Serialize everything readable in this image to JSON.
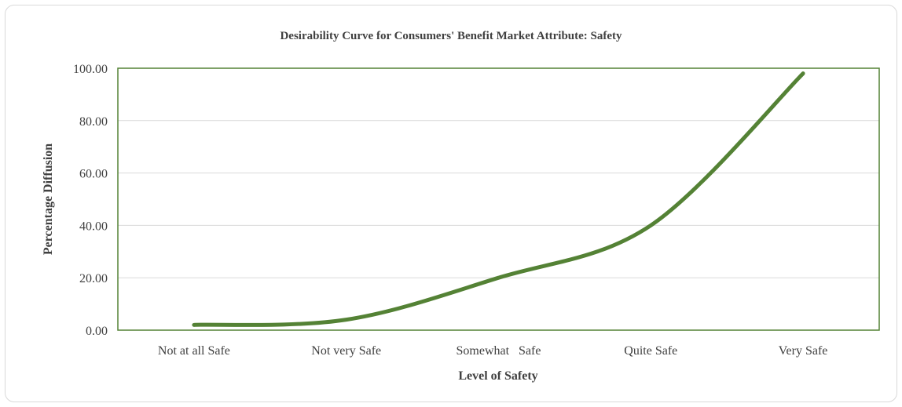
{
  "chart_data": {
    "type": "line",
    "title": "Desirability Curve for Consumers' Benefit Market Attribute: Safety",
    "xlabel": "Level of Safety",
    "ylabel": "Percentage Diffusion",
    "categories": [
      "Not at all Safe",
      "Not very Safe",
      "Somewhat   Safe",
      "Quite Safe",
      "Very Safe"
    ],
    "series": [
      {
        "name": "",
        "values": [
          2.0,
          4.0,
          20.0,
          40.0,
          98.0
        ]
      }
    ],
    "ylim": [
      0,
      100
    ],
    "yticks": [
      "0.00",
      "20.00",
      "40.00",
      "60.00",
      "80.00",
      "100.00"
    ],
    "grid": true,
    "smooth": true,
    "legend": "none",
    "colors": {
      "line": "#548235",
      "plot_border": "#548235",
      "grid": "#d9d9d9"
    }
  }
}
